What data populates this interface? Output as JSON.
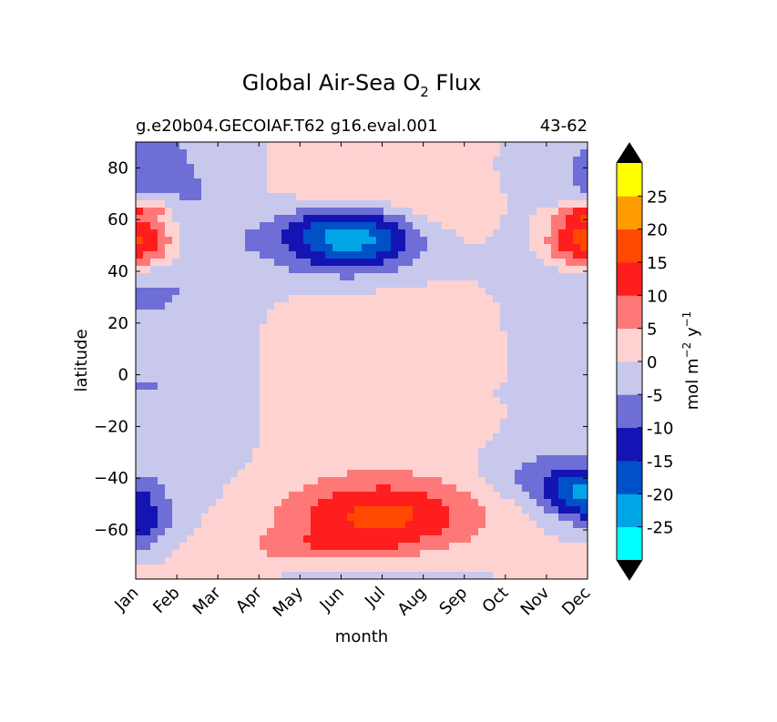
{
  "chart_data": {
    "type": "heatmap",
    "title_main": "Global Air-Sea O",
    "title_sub": "2",
    "title_end": " Flux",
    "left_subtitle": "g.e20b04.GECOIAF.T62 g16.eval.001",
    "right_subtitle": "43-62",
    "xlabel": "month",
    "ylabel": "latitude",
    "x_ticks": [
      "Jan",
      "Feb",
      "Mar",
      "Apr",
      "May",
      "Jun",
      "Jul",
      "Aug",
      "Sep",
      "Oct",
      "Nov",
      "Dec"
    ],
    "y_ticks": [
      80,
      60,
      40,
      20,
      0,
      -20,
      -40,
      -60
    ],
    "ylim": [
      -79,
      90
    ],
    "xlim": [
      0,
      11
    ],
    "colorbar": {
      "label_main": "mol m",
      "label_exp1": "−2",
      "label_mid": " y",
      "label_exp2": "−1",
      "tick_labels": [
        "25",
        "20",
        "15",
        "10",
        "5",
        "0",
        "-5",
        "-10",
        "-15",
        "-20",
        "-25"
      ],
      "levels": [
        -30,
        -25,
        -20,
        -15,
        -10,
        -5,
        0,
        5,
        10,
        15,
        20,
        25,
        30
      ],
      "colors": [
        "#00ffff",
        "#00a5e6",
        "#0050c8",
        "#1414b4",
        "#6e6ed6",
        "#c8c8ec",
        "#ffd2d2",
        "#ff7878",
        "#ff1e1e",
        "#ff4800",
        "#ff9c00",
        "#ffff00"
      ],
      "extend_color": "#000000"
    }
  }
}
